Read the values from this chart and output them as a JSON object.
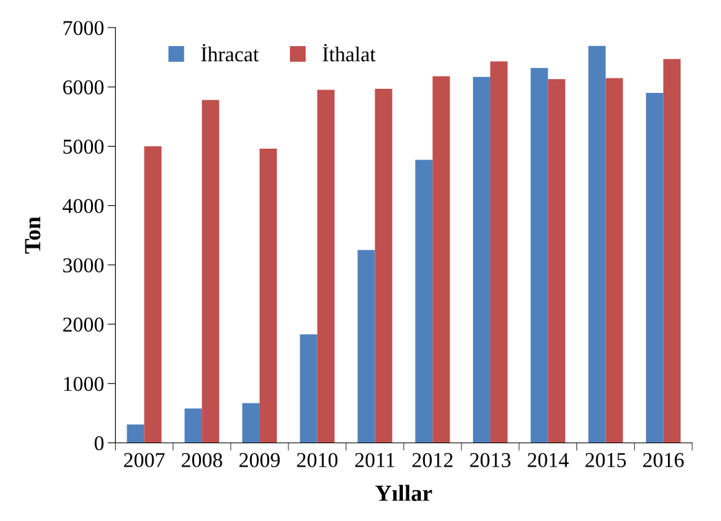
{
  "chart_data": {
    "type": "bar",
    "xlabel": "Yıllar",
    "ylabel": "Ton",
    "categories": [
      "2007",
      "2008",
      "2009",
      "2010",
      "2011",
      "2012",
      "2013",
      "2014",
      "2015",
      "2016"
    ],
    "series": [
      {
        "name": "İhracat",
        "color": "#4f81bd",
        "values": [
          310,
          580,
          670,
          1830,
          3250,
          4770,
          6170,
          6320,
          6690,
          5900
        ]
      },
      {
        "name": "İthalat",
        "color": "#c0504d",
        "values": [
          5000,
          5780,
          4960,
          5950,
          5970,
          6180,
          6430,
          6130,
          6150,
          6470
        ]
      }
    ],
    "ylim": [
      0,
      7000
    ],
    "yticks": [
      0,
      1000,
      2000,
      3000,
      4000,
      5000,
      6000,
      7000
    ],
    "grid": false,
    "legend": "top left"
  }
}
